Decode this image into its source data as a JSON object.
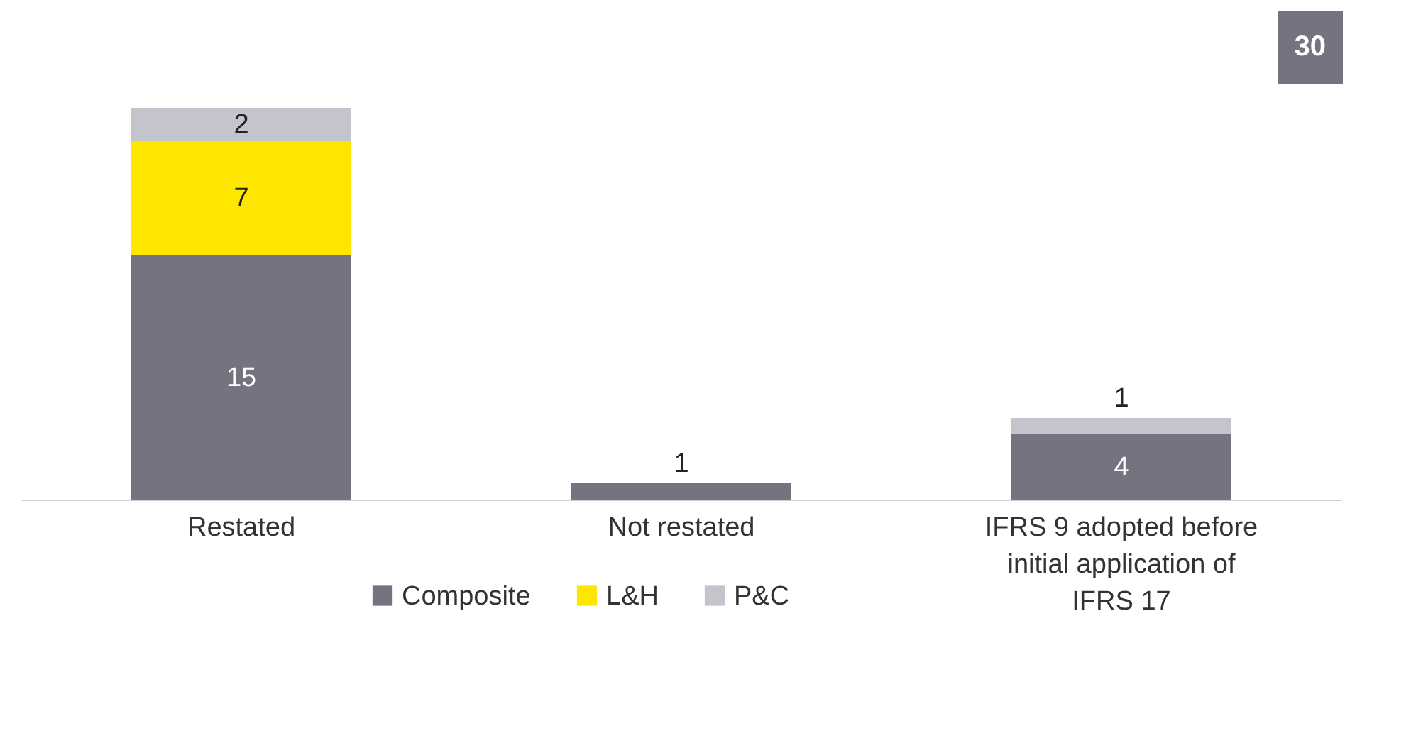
{
  "chart_data": {
    "type": "bar",
    "stacked": true,
    "categories": [
      "Restated",
      "Not restated",
      "IFRS 9 adopted before initial application of IFRS 17"
    ],
    "series": [
      {
        "name": "Composite",
        "color": "#747480",
        "values": [
          15,
          1,
          4
        ]
      },
      {
        "name": "L&H",
        "color": "#ffe600",
        "values": [
          7,
          null,
          null
        ]
      },
      {
        "name": "P&C",
        "color": "#c4c4cd",
        "values": [
          2,
          null,
          1
        ]
      }
    ],
    "data_labels": true,
    "legend": "bottom",
    "grid": false,
    "annotations": [
      "30"
    ]
  }
}
